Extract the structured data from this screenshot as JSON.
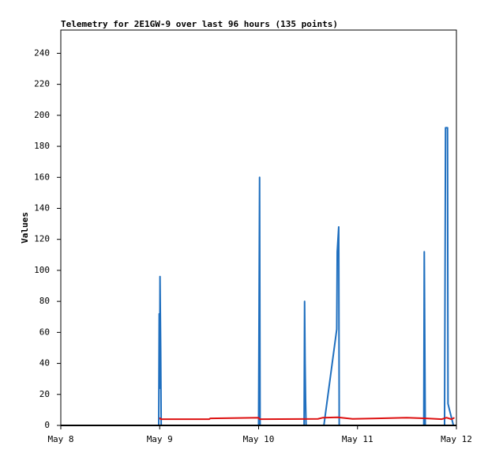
{
  "chart_data": {
    "type": "line",
    "title": "Telemetry for 2E1GW-9 over last 96 hours (135 points)",
    "y_label": "Values",
    "xlim": [
      0,
      4
    ],
    "xticks": [
      {
        "value": 0,
        "label": "May 8"
      },
      {
        "value": 1,
        "label": "May 9"
      },
      {
        "value": 2,
        "label": "May 10"
      },
      {
        "value": 3,
        "label": "May 11"
      },
      {
        "value": 4,
        "label": "May 12"
      }
    ],
    "ylim": [
      0,
      255
    ],
    "yticks": [
      0,
      20,
      40,
      60,
      80,
      100,
      120,
      140,
      160,
      180,
      200,
      220,
      240
    ],
    "grid": false,
    "series": [
      {
        "color": "#1f6fbf",
        "x": [
          0.99,
          0.995,
          1.0,
          1.003,
          1.01,
          1.015,
          2.0,
          2.005,
          2.01,
          2.015,
          2.46,
          2.465,
          2.47,
          2.475,
          2.48,
          2.66,
          2.79,
          2.795,
          2.81,
          2.815,
          3.67,
          3.675,
          3.68,
          3.685,
          3.88,
          3.885,
          3.89,
          3.91,
          3.915,
          3.93,
          3.97
        ],
        "values": [
          0,
          72,
          24,
          96,
          48,
          0,
          0,
          80,
          160,
          0,
          0,
          80,
          40,
          16,
          0,
          0,
          62,
          112,
          128,
          0,
          0,
          112,
          56,
          0,
          0,
          96,
          192,
          192,
          14,
          10,
          0
        ]
      },
      {
        "color": "#dd1111",
        "x": [
          1.0,
          1.01,
          1.5,
          1.51,
          2.0,
          2.01,
          2.6,
          2.65,
          2.8,
          2.95,
          3.2,
          3.5,
          3.7,
          3.85,
          3.9,
          3.95,
          3.98
        ],
        "values": [
          5,
          4,
          4,
          4.5,
          5,
          4,
          4.2,
          5,
          5.2,
          4.2,
          4.5,
          5,
          4.5,
          4,
          5,
          4,
          5
        ]
      }
    ]
  }
}
